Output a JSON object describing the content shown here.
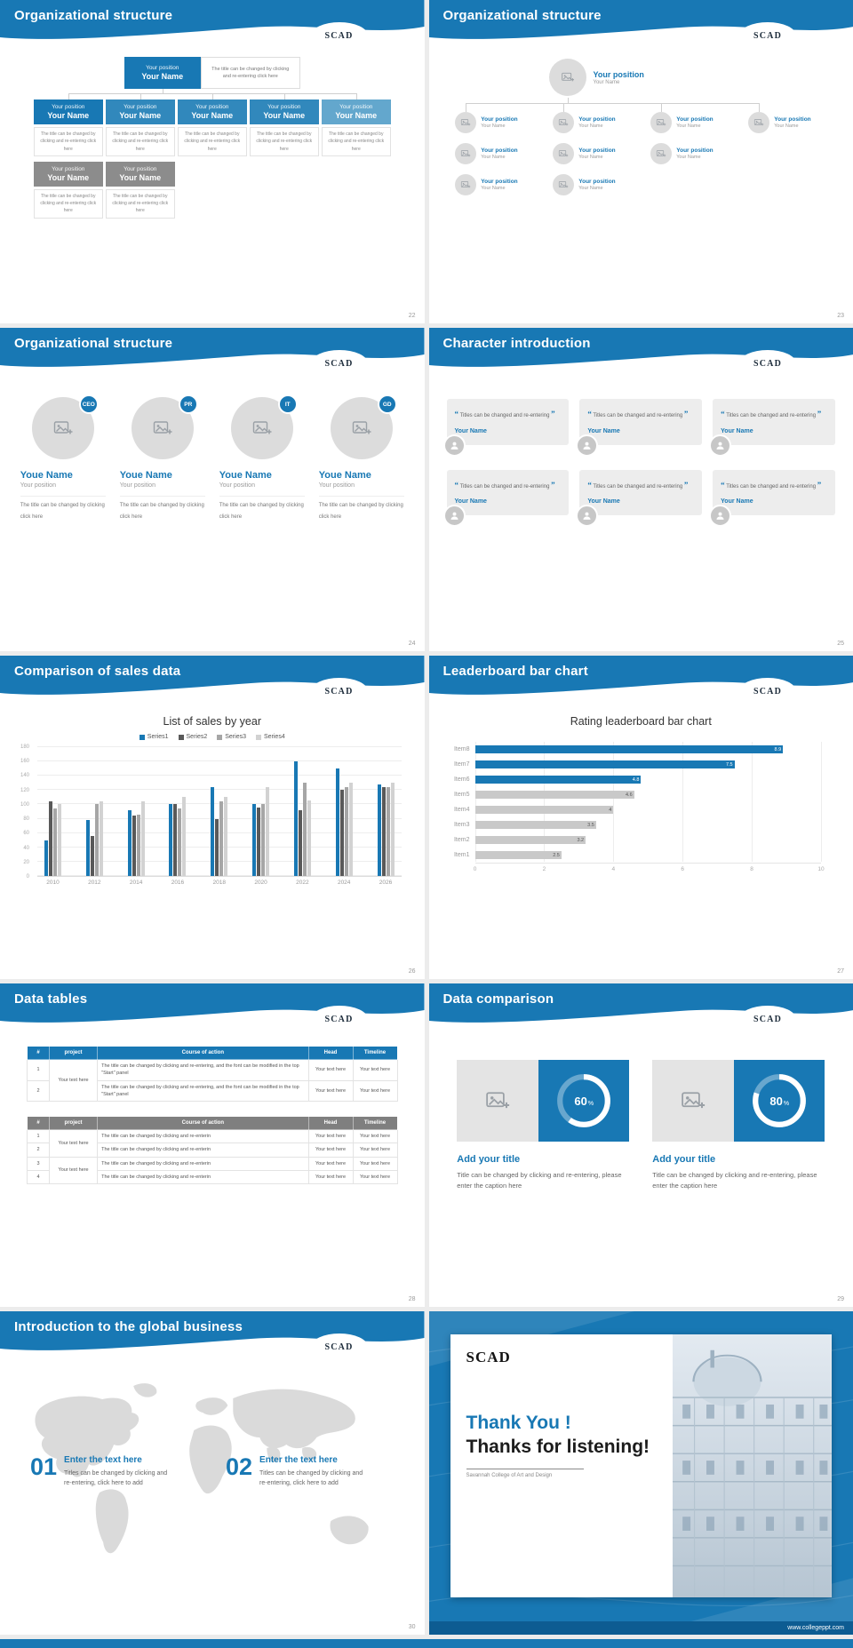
{
  "logo": "SCAD",
  "colors": {
    "accent": "#1878b4",
    "accent_dark": "#0d5c92",
    "gray_box": "#8c8c8c"
  },
  "slides": {
    "s22": {
      "title": "Organizational structure",
      "page": "22",
      "position": "Your position",
      "name": "Your Name",
      "desc": "The title can be changed by clicking and re-entering click here"
    },
    "s23": {
      "title": "Organizational structure",
      "page": "23",
      "position": "Your position",
      "name": "Your Name"
    },
    "s24": {
      "title": "Organizational structure",
      "page": "24",
      "name": "Youe Name",
      "position": "Your position",
      "desc": "The title can be changed by clicking click here",
      "badges": [
        "CEO",
        "PR",
        "IT",
        "GD"
      ]
    },
    "s25": {
      "title": "Character introduction",
      "page": "25",
      "quote_open": "“",
      "quote_close": "”",
      "quote": "Titles can be changed and re-entering",
      "name": "Your Name"
    },
    "s26": {
      "title": "Comparison of sales data",
      "page": "26"
    },
    "s27": {
      "title": "Leaderboard bar chart",
      "page": "27"
    },
    "s28": {
      "title": "Data tables",
      "page": "28",
      "headers": [
        "#",
        "project",
        "Course of action",
        "Head",
        "Timeline"
      ],
      "cell": "Your text here",
      "long_text_1": "The title can be changed by clicking and re-entering, and the font can be modified in the top \"Start\" panel",
      "long_text_2": "The title can be changed by clicking and re-enterin",
      "row_numbers": [
        "1",
        "2",
        "3",
        "4"
      ]
    },
    "s29": {
      "title": "Data comparison",
      "page": "29",
      "items": [
        {
          "value": 60,
          "label": "60",
          "unit": "%"
        },
        {
          "value": 80,
          "label": "80",
          "unit": "%"
        }
      ],
      "item_title": "Add your title",
      "caption": "Title can be changed by clicking and re-entering, please enter the caption here"
    },
    "s30": {
      "title": "Introduction to the global business",
      "page": "30",
      "items": [
        {
          "num": "01"
        },
        {
          "num": "02"
        }
      ],
      "heading": "Enter the text here",
      "body": "Titles can be changed by clicking and re-entering, click here to add"
    },
    "thanks": {
      "logo": "SCAD",
      "line1": "Thank You !",
      "line2": "Thanks for listening!",
      "subtitle": "Savannah College of Art and Design",
      "url": "www.collegeppt.com"
    }
  },
  "chart_data": [
    {
      "type": "bar",
      "title": "List of sales by year",
      "categories": [
        "2010",
        "2012",
        "2014",
        "2016",
        "2018",
        "2020",
        "2022",
        "2024",
        "2026"
      ],
      "series": [
        {
          "name": "Series1",
          "color": "#1878b4",
          "values": [
            50,
            78,
            92,
            100,
            124,
            100,
            160,
            150,
            128
          ]
        },
        {
          "name": "Series2",
          "color": "#595959",
          "values": [
            104,
            56,
            84,
            100,
            80,
            96,
            92,
            120,
            124
          ]
        },
        {
          "name": "Series3",
          "color": "#a6a6a6",
          "values": [
            94,
            100,
            86,
            94,
            104,
            100,
            130,
            124,
            124
          ]
        },
        {
          "name": "Series4",
          "color": "#d2d2d2",
          "values": [
            100,
            104,
            104,
            110,
            110,
            124,
            106,
            130,
            130
          ]
        }
      ],
      "ylim": [
        0,
        180
      ],
      "ystep": 20,
      "grid": true,
      "legend_position": "top"
    },
    {
      "type": "bar",
      "orientation": "horizontal",
      "title": "Rating leaderboard bar chart",
      "categories": [
        "Item8",
        "Item7",
        "Item6",
        "Item5",
        "Item4",
        "Item3",
        "Item2",
        "Item1"
      ],
      "values": [
        8.9,
        7.5,
        4.8,
        4.6,
        4,
        3.5,
        3.2,
        2.5
      ],
      "colors": [
        "#1878b4",
        "#1878b4",
        "#1878b4",
        "#c9c9c9",
        "#c9c9c9",
        "#c9c9c9",
        "#c9c9c9",
        "#c9c9c9"
      ],
      "xlim": [
        0,
        10
      ],
      "xstep": 2,
      "grid": true
    }
  ]
}
